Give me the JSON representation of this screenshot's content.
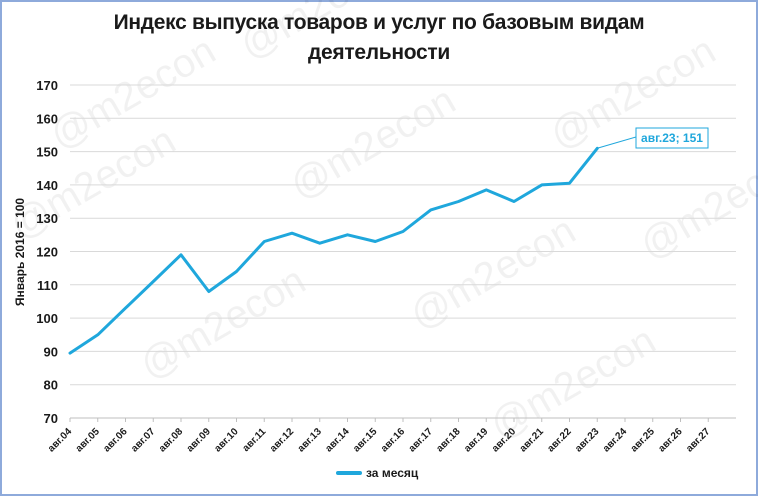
{
  "title": "Индекс выпуска товаров и услуг по базовым видам деятельности",
  "title_line1": "Индекс выпуска товаров и услуг по базовым видам",
  "title_line2": "деятельности",
  "watermark": "@m2econ",
  "legend": {
    "label": "за месяц",
    "color": "#1fa7dc"
  },
  "callout": {
    "label": "авг.23; 151"
  },
  "colors": {
    "line": "#1fa7dc",
    "grid": "#d9d9d9",
    "frame": "#8eaadb"
  },
  "chart_data": {
    "type": "line",
    "title": "Индекс выпуска товаров и услуг по базовым видам деятельности",
    "xlabel": "",
    "ylabel": "Январь 2016 = 100",
    "ylim": [
      70,
      170
    ],
    "yticks": [
      70,
      80,
      90,
      100,
      110,
      120,
      130,
      140,
      150,
      160,
      170
    ],
    "grid": true,
    "legend_position": "bottom",
    "categories": [
      "авг.04",
      "авг.05",
      "авг.06",
      "авг.07",
      "авг.08",
      "авг.09",
      "авг.10",
      "авг.11",
      "авг.12",
      "авг.13",
      "авг.14",
      "авг.15",
      "авг.16",
      "авг.17",
      "авг.18",
      "авг.19",
      "авг.20",
      "авг.21",
      "авг.22",
      "авг.23",
      "авг.24",
      "авг.25",
      "авг.26",
      "авг.27"
    ],
    "series": [
      {
        "name": "за месяц",
        "values": [
          89.5,
          95,
          103,
          111,
          119,
          108,
          114,
          123,
          125.5,
          122.5,
          125,
          123,
          126,
          132.5,
          135,
          138.5,
          135,
          140,
          140.5,
          151,
          null,
          null,
          null,
          null
        ]
      }
    ],
    "annotations": [
      {
        "category": "авг.23",
        "value": 151,
        "text": "авг.23; 151"
      }
    ]
  }
}
